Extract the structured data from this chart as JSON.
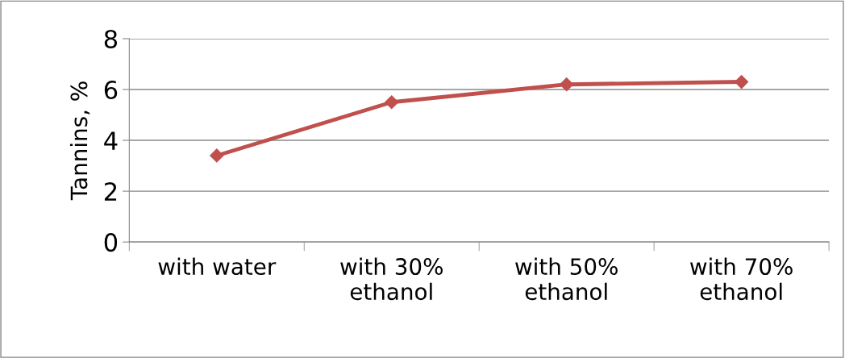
{
  "chart_data": {
    "type": "line",
    "ylabel": "Tannins, %",
    "categories": [
      "with water",
      "with 30%\nethanol",
      "with 50%\nethanol",
      "with 70%\nethanol"
    ],
    "series": [
      {
        "color": "#c0504d",
        "values": [
          3.4,
          5.5,
          6.2,
          6.3
        ]
      }
    ],
    "ylim": [
      0,
      8
    ],
    "yticks": [
      0,
      2,
      4,
      6,
      8
    ],
    "grid": "y",
    "marker": "diamond",
    "line_style": "solid"
  }
}
